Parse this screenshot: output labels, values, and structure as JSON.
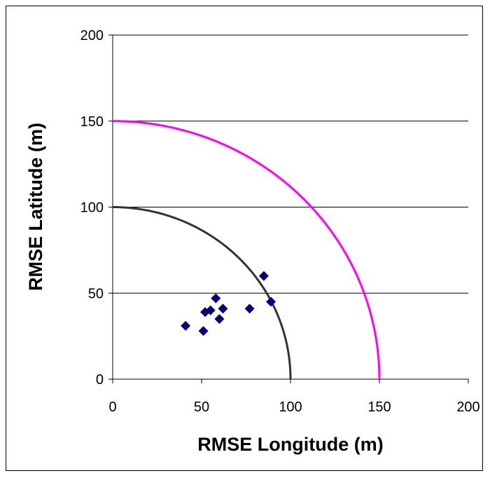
{
  "chart_data": {
    "type": "scatter",
    "title": "",
    "xlabel": "RMSE Longitude (m)",
    "ylabel": "RMSE Latitude (m)",
    "xlim": [
      0,
      200
    ],
    "ylim": [
      0,
      200
    ],
    "xticks": [
      "0",
      "50",
      "100",
      "150",
      "200"
    ],
    "yticks": [
      "0",
      "50",
      "100",
      "150",
      "200"
    ],
    "grid": "horizontal",
    "legend": "none",
    "series": [
      {
        "kind": "points",
        "marker": "diamond",
        "color": "#000080",
        "points": [
          {
            "x": 41,
            "y": 31
          },
          {
            "x": 51,
            "y": 28
          },
          {
            "x": 52,
            "y": 39
          },
          {
            "x": 55,
            "y": 40
          },
          {
            "x": 58,
            "y": 47
          },
          {
            "x": 60,
            "y": 35
          },
          {
            "x": 62,
            "y": 41
          },
          {
            "x": 77,
            "y": 41
          },
          {
            "x": 85,
            "y": 60
          },
          {
            "x": 89,
            "y": 45
          }
        ]
      },
      {
        "kind": "circle-arc",
        "radius": 100,
        "color": "#333333"
      },
      {
        "kind": "circle-arc",
        "radius": 150,
        "color": "#ff00ff"
      }
    ]
  }
}
